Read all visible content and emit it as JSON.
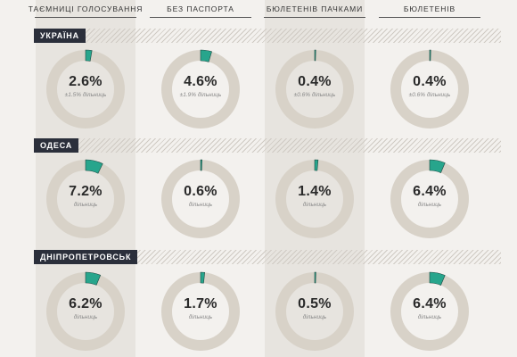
{
  "colors": {
    "ring_base": "#d8d2c8",
    "ring_value": "#27a58c",
    "label_bg": "#2b2f3b",
    "band": "#e7e4df"
  },
  "headers": [
    "ТАЄМНИЦІ ГОЛОСУВАННЯ",
    "БЕЗ ПАСПОРТА",
    "БЮЛЕТЕНІВ ПАЧКАМИ",
    "БЮЛЕТЕНІВ"
  ],
  "regions": [
    {
      "name": "УКРАЇНА",
      "cells": [
        {
          "value": 2.6,
          "label": "2.6%",
          "sub": "±1.5% дільниць"
        },
        {
          "value": 4.6,
          "label": "4.6%",
          "sub": "±1.9% дільниць"
        },
        {
          "value": 0.4,
          "label": "0.4%",
          "sub": "±0.6% дільниць"
        },
        {
          "value": 0.4,
          "label": "0.4%",
          "sub": "±0.6% дільниць"
        }
      ]
    },
    {
      "name": "ОДЕСА",
      "cells": [
        {
          "value": 7.2,
          "label": "7.2%",
          "sub": "дільниць"
        },
        {
          "value": 0.6,
          "label": "0.6%",
          "sub": "дільниць"
        },
        {
          "value": 1.4,
          "label": "1.4%",
          "sub": "дільниць"
        },
        {
          "value": 6.4,
          "label": "6.4%",
          "sub": "дільниць"
        }
      ]
    },
    {
      "name": "ДНІПРОПЕТРОВСЬК",
      "cells": [
        {
          "value": 6.2,
          "label": "6.2%",
          "sub": "дільниць"
        },
        {
          "value": 1.7,
          "label": "1.7%",
          "sub": "дільниць"
        },
        {
          "value": 0.5,
          "label": "0.5%",
          "sub": "дільниць"
        },
        {
          "value": 6.4,
          "label": "6.4%",
          "sub": "дільниць"
        }
      ]
    }
  ],
  "chart_data": {
    "type": "pie",
    "categories": [
      "ТАЄМНИЦІ ГОЛОСУВАННЯ",
      "БЕЗ ПАСПОРТА",
      "БЮЛЕТЕНІВ ПАЧКАМИ",
      "БЮЛЕТЕНІВ"
    ],
    "series": [
      {
        "name": "УКРАЇНА",
        "values": [
          2.6,
          4.6,
          0.4,
          0.4
        ]
      },
      {
        "name": "ОДЕСА",
        "values": [
          7.2,
          0.6,
          1.4,
          6.4
        ]
      },
      {
        "name": "ДНІПРОПЕТРОВСЬК",
        "values": [
          6.2,
          1.7,
          0.5,
          6.4
        ]
      }
    ],
    "unit": "%"
  }
}
